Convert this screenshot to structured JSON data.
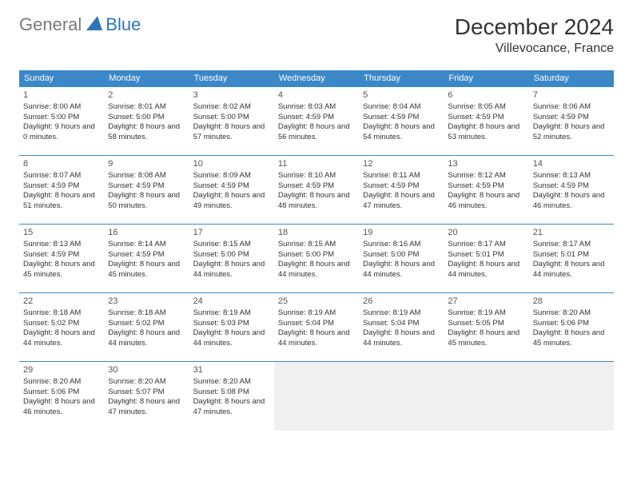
{
  "logo": {
    "text1": "General",
    "text2": "Blue"
  },
  "title": "December 2024",
  "location": "Villevocance, France",
  "colors": {
    "header_bg": "#3b87c8",
    "header_text": "#ffffff",
    "row_border": "#3b87c8",
    "empty_bg": "#f0f0f0",
    "logo_gray": "#7a7a7a",
    "logo_blue": "#2f75b5",
    "text": "#333333"
  },
  "day_names": [
    "Sunday",
    "Monday",
    "Tuesday",
    "Wednesday",
    "Thursday",
    "Friday",
    "Saturday"
  ],
  "weeks": [
    [
      {
        "n": "1",
        "sr": "8:00 AM",
        "ss": "5:00 PM",
        "dl": "9 hours and 0 minutes."
      },
      {
        "n": "2",
        "sr": "8:01 AM",
        "ss": "5:00 PM",
        "dl": "8 hours and 58 minutes."
      },
      {
        "n": "3",
        "sr": "8:02 AM",
        "ss": "5:00 PM",
        "dl": "8 hours and 57 minutes."
      },
      {
        "n": "4",
        "sr": "8:03 AM",
        "ss": "4:59 PM",
        "dl": "8 hours and 56 minutes."
      },
      {
        "n": "5",
        "sr": "8:04 AM",
        "ss": "4:59 PM",
        "dl": "8 hours and 54 minutes."
      },
      {
        "n": "6",
        "sr": "8:05 AM",
        "ss": "4:59 PM",
        "dl": "8 hours and 53 minutes."
      },
      {
        "n": "7",
        "sr": "8:06 AM",
        "ss": "4:59 PM",
        "dl": "8 hours and 52 minutes."
      }
    ],
    [
      {
        "n": "8",
        "sr": "8:07 AM",
        "ss": "4:59 PM",
        "dl": "8 hours and 51 minutes."
      },
      {
        "n": "9",
        "sr": "8:08 AM",
        "ss": "4:59 PM",
        "dl": "8 hours and 50 minutes."
      },
      {
        "n": "10",
        "sr": "8:09 AM",
        "ss": "4:59 PM",
        "dl": "8 hours and 49 minutes."
      },
      {
        "n": "11",
        "sr": "8:10 AM",
        "ss": "4:59 PM",
        "dl": "8 hours and 48 minutes."
      },
      {
        "n": "12",
        "sr": "8:11 AM",
        "ss": "4:59 PM",
        "dl": "8 hours and 47 minutes."
      },
      {
        "n": "13",
        "sr": "8:12 AM",
        "ss": "4:59 PM",
        "dl": "8 hours and 46 minutes."
      },
      {
        "n": "14",
        "sr": "8:13 AM",
        "ss": "4:59 PM",
        "dl": "8 hours and 46 minutes."
      }
    ],
    [
      {
        "n": "15",
        "sr": "8:13 AM",
        "ss": "4:59 PM",
        "dl": "8 hours and 45 minutes."
      },
      {
        "n": "16",
        "sr": "8:14 AM",
        "ss": "4:59 PM",
        "dl": "8 hours and 45 minutes."
      },
      {
        "n": "17",
        "sr": "8:15 AM",
        "ss": "5:00 PM",
        "dl": "8 hours and 44 minutes."
      },
      {
        "n": "18",
        "sr": "8:15 AM",
        "ss": "5:00 PM",
        "dl": "8 hours and 44 minutes."
      },
      {
        "n": "19",
        "sr": "8:16 AM",
        "ss": "5:00 PM",
        "dl": "8 hours and 44 minutes."
      },
      {
        "n": "20",
        "sr": "8:17 AM",
        "ss": "5:01 PM",
        "dl": "8 hours and 44 minutes."
      },
      {
        "n": "21",
        "sr": "8:17 AM",
        "ss": "5:01 PM",
        "dl": "8 hours and 44 minutes."
      }
    ],
    [
      {
        "n": "22",
        "sr": "8:18 AM",
        "ss": "5:02 PM",
        "dl": "8 hours and 44 minutes."
      },
      {
        "n": "23",
        "sr": "8:18 AM",
        "ss": "5:02 PM",
        "dl": "8 hours and 44 minutes."
      },
      {
        "n": "24",
        "sr": "8:19 AM",
        "ss": "5:03 PM",
        "dl": "8 hours and 44 minutes."
      },
      {
        "n": "25",
        "sr": "8:19 AM",
        "ss": "5:04 PM",
        "dl": "8 hours and 44 minutes."
      },
      {
        "n": "26",
        "sr": "8:19 AM",
        "ss": "5:04 PM",
        "dl": "8 hours and 44 minutes."
      },
      {
        "n": "27",
        "sr": "8:19 AM",
        "ss": "5:05 PM",
        "dl": "8 hours and 45 minutes."
      },
      {
        "n": "28",
        "sr": "8:20 AM",
        "ss": "5:06 PM",
        "dl": "8 hours and 45 minutes."
      }
    ],
    [
      {
        "n": "29",
        "sr": "8:20 AM",
        "ss": "5:06 PM",
        "dl": "8 hours and 46 minutes."
      },
      {
        "n": "30",
        "sr": "8:20 AM",
        "ss": "5:07 PM",
        "dl": "8 hours and 47 minutes."
      },
      {
        "n": "31",
        "sr": "8:20 AM",
        "ss": "5:08 PM",
        "dl": "8 hours and 47 minutes."
      },
      null,
      null,
      null,
      null
    ]
  ],
  "labels": {
    "sunrise": "Sunrise:",
    "sunset": "Sunset:",
    "daylight": "Daylight:"
  }
}
